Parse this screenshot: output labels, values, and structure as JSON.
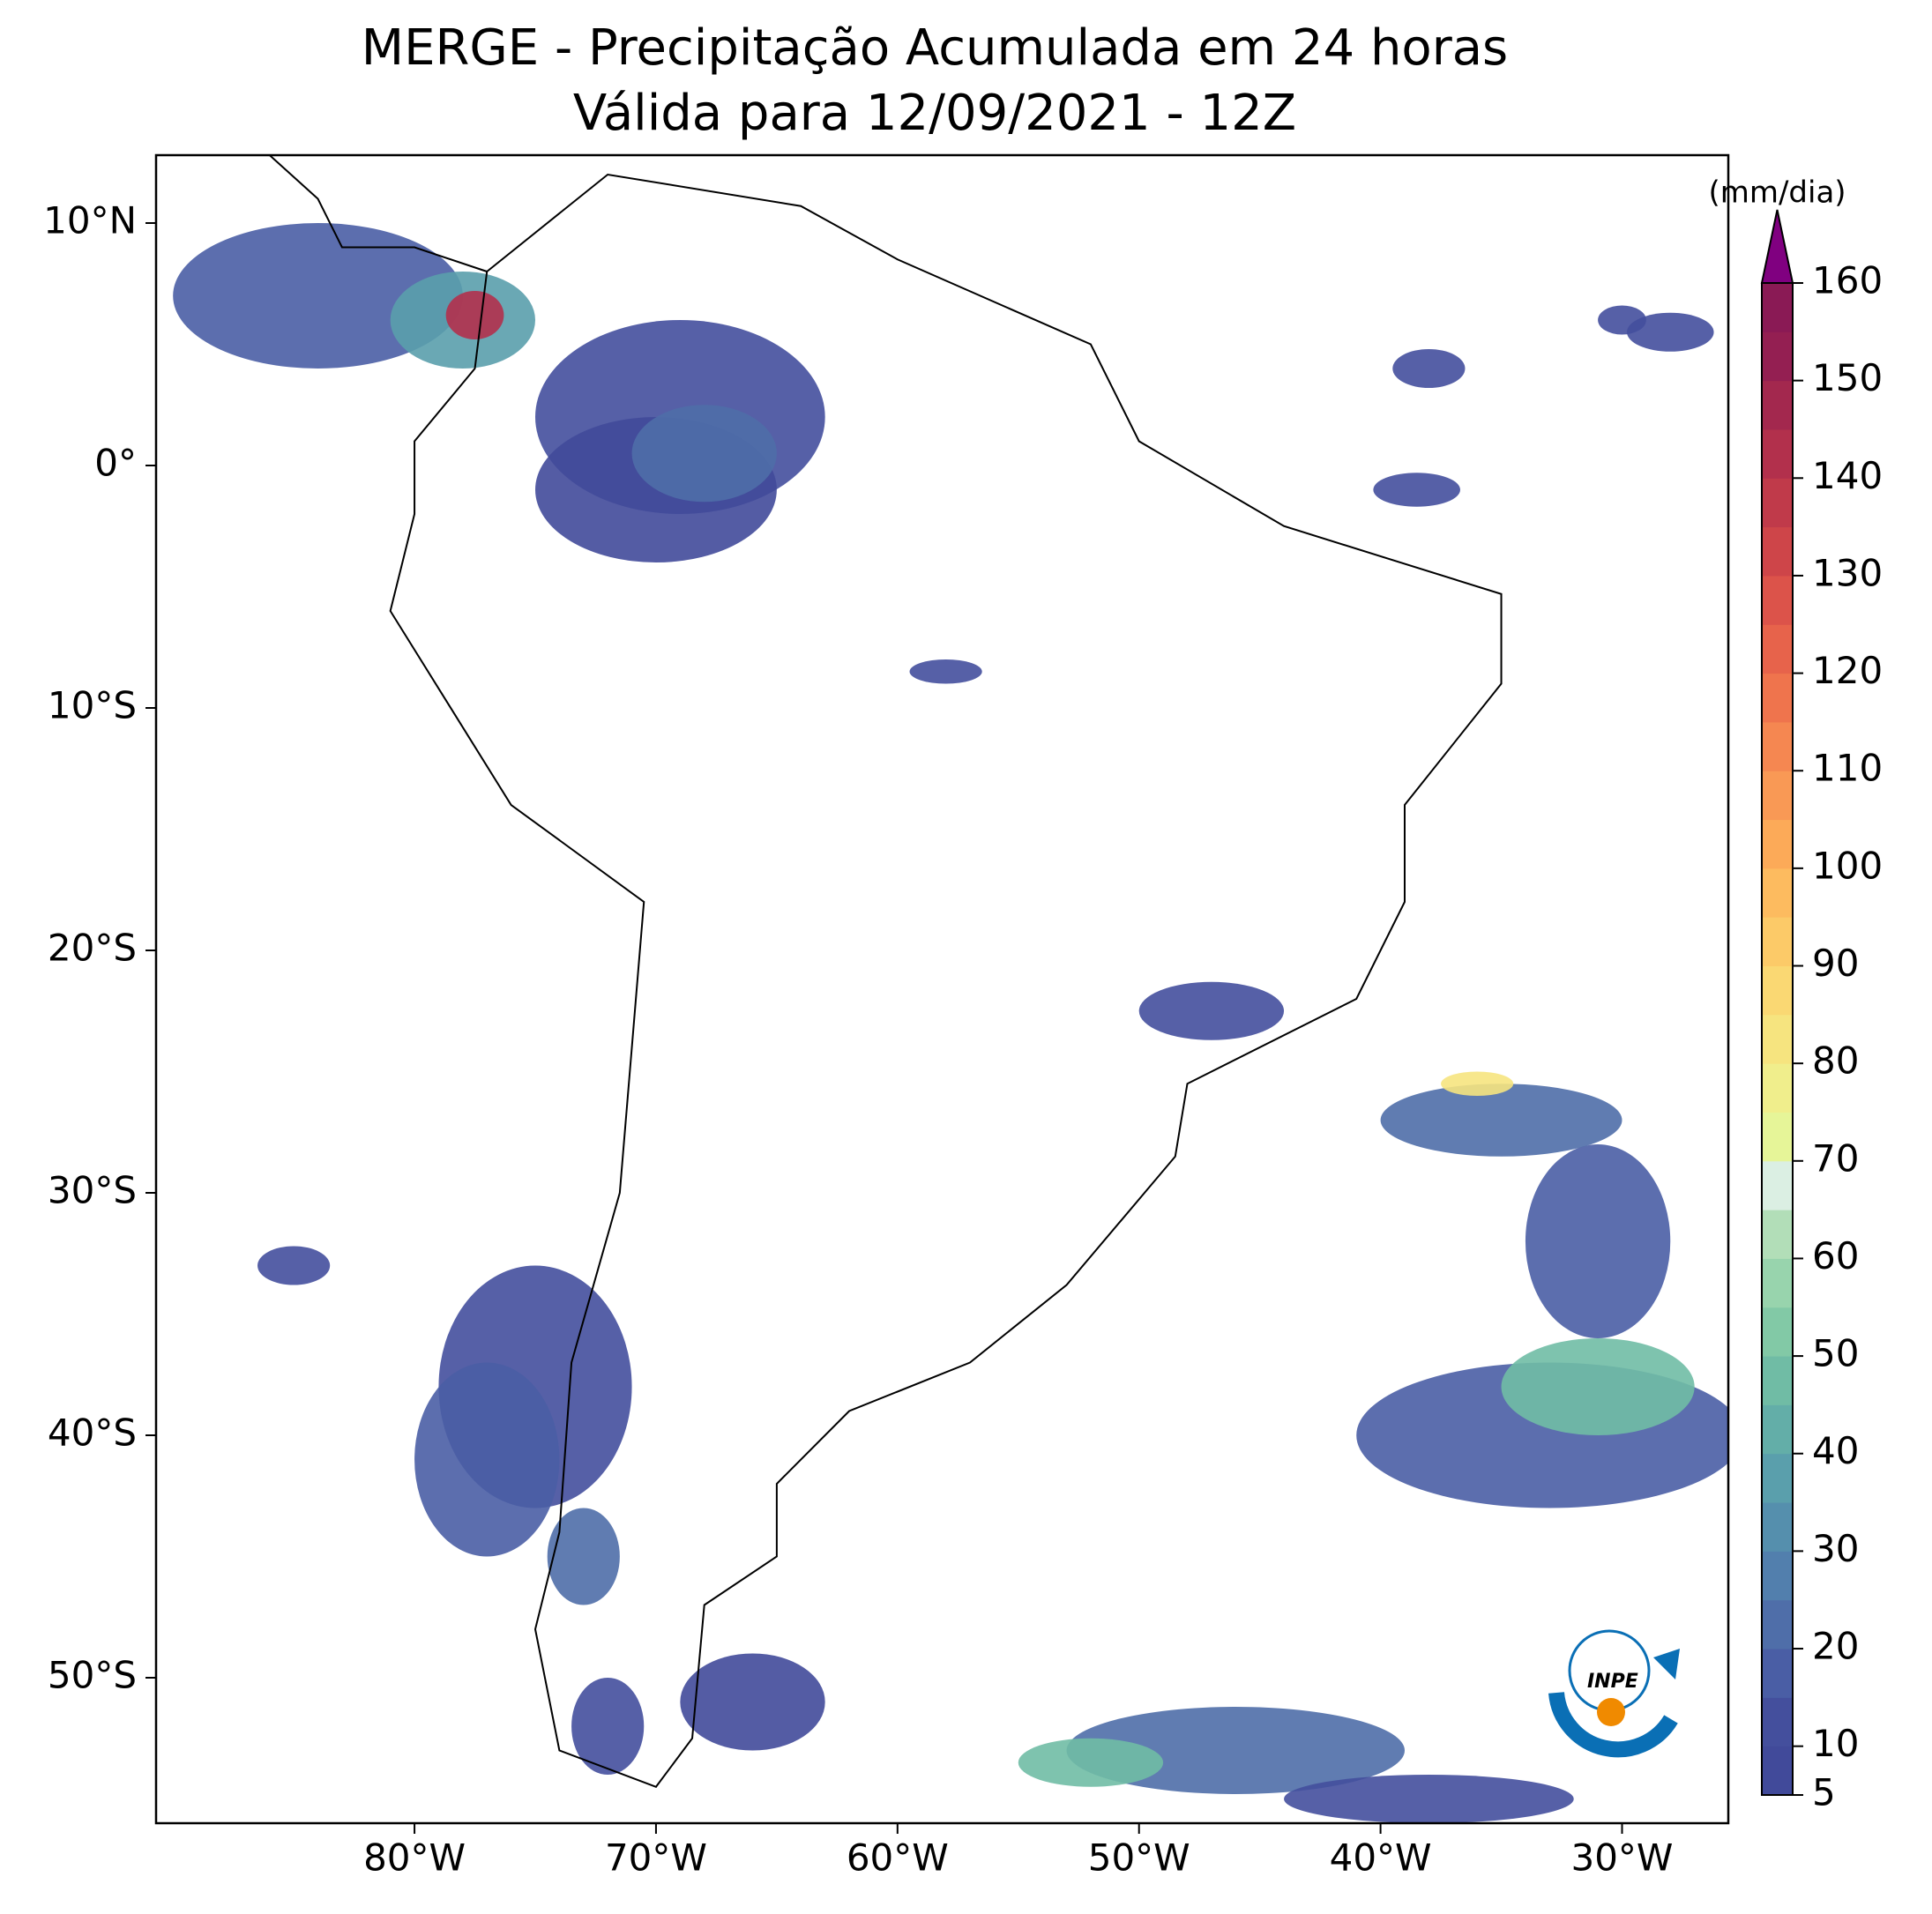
{
  "title": "MERGE - Precipitação Acumulada em 24 horas",
  "subtitle": "Válida para 12/09/2021 - 12Z",
  "map": {
    "xlim": [
      -90.7,
      -25.6
    ],
    "ylim": [
      -56,
      12.8
    ],
    "xticks": [
      {
        "value": -80,
        "label": "80°W"
      },
      {
        "value": -70,
        "label": "70°W"
      },
      {
        "value": -60,
        "label": "60°W"
      },
      {
        "value": -50,
        "label": "50°W"
      },
      {
        "value": -40,
        "label": "40°W"
      },
      {
        "value": -30,
        "label": "30°W"
      }
    ],
    "yticks": [
      {
        "value": 10,
        "label": "10°N"
      },
      {
        "value": 0,
        "label": "0°"
      },
      {
        "value": -10,
        "label": "10°S"
      },
      {
        "value": -20,
        "label": "20°S"
      },
      {
        "value": -30,
        "label": "30°S"
      },
      {
        "value": -40,
        "label": "40°S"
      },
      {
        "value": -50,
        "label": "50°S"
      }
    ]
  },
  "colorbar": {
    "label": "(mm/dia)",
    "lim": [
      5,
      160
    ],
    "ticks": [
      5,
      10,
      20,
      30,
      40,
      50,
      60,
      70,
      80,
      90,
      100,
      110,
      120,
      130,
      140,
      150,
      160
    ],
    "levels": [
      5,
      10,
      15,
      20,
      25,
      30,
      35,
      40,
      45,
      50,
      55,
      60,
      65,
      70,
      75,
      80,
      85,
      90,
      95,
      100,
      105,
      110,
      115,
      120,
      125,
      130,
      135,
      140,
      145,
      150,
      155,
      160
    ],
    "colors": [
      "#414a9a",
      "#444f9d",
      "#4a5ea5",
      "#4f6ea9",
      "#527fad",
      "#558fad",
      "#5a9fac",
      "#63aea8",
      "#70bca5",
      "#82c9a6",
      "#98d4ad",
      "#b2deb8",
      "#dbefe3",
      "#e6f598",
      "#f0ee8c",
      "#f6e47f",
      "#fad873",
      "#fcca68",
      "#fdbb5f",
      "#fcaa58",
      "#f99955",
      "#f58751",
      "#ef744d",
      "#e7634b",
      "#dc534a",
      "#ce4549",
      "#c03a4a",
      "#b2304c",
      "#a3284e",
      "#941f52",
      "#8a1a55"
    ],
    "over_color": "#800080"
  },
  "logo": "INPE"
}
